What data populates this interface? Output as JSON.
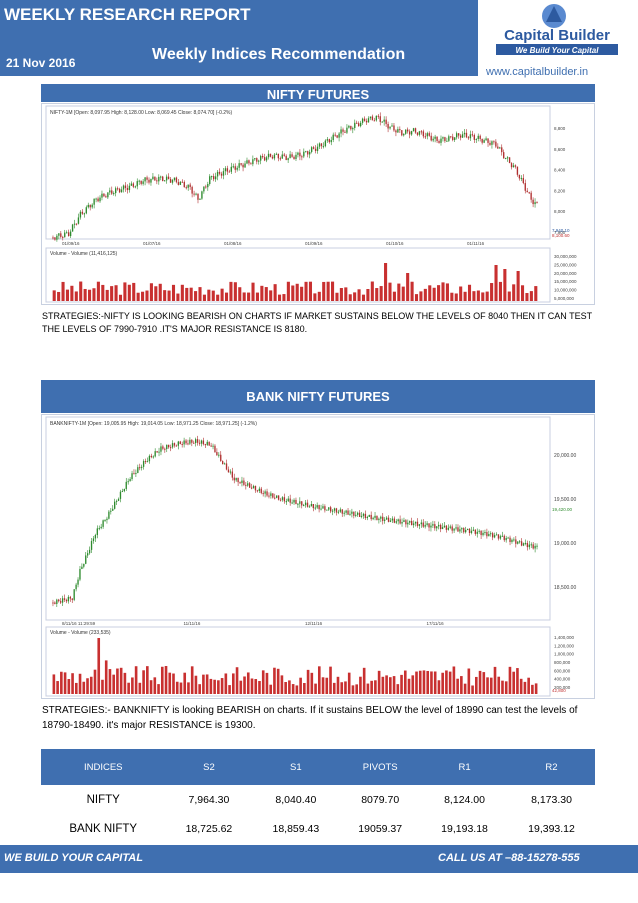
{
  "header": {
    "title": "WEEKLY RESEARCH REPORT",
    "date": "21 Nov 2016",
    "subtitle": "Weekly Indices Recommendation",
    "website": "www.capitalbuilder.in",
    "logo_name": "Capital Builder",
    "logo_tagline": "We Build Your Capital"
  },
  "nifty": {
    "section_title": "NIFTY FUTURES",
    "chart_header": "NIFTY-1M [Open: 8,097.95  High: 8,128.00  Low: 8,069.45  Close: 8,074.70] (-0.2%)",
    "volume_header": "Volume - Volume (11,416,125)",
    "price_axis": [
      "8,800",
      "8,600",
      "8,400",
      "8,200",
      "8,000",
      "7,900"
    ],
    "volume_axis": [
      "30,000,000",
      "25,000,000",
      "20,000,000",
      "15,000,000",
      "10,000,000",
      "5,000,000"
    ],
    "date_labels": [
      "01/09/16",
      "01/07/16",
      "01/08/16",
      "01/09/16",
      "01/10/16",
      "01/11/16"
    ],
    "price_tags": [
      "7,940.10",
      "8,100.60"
    ],
    "strategy": "STRATEGIES:-NIFTY IS LOOKING BEARISH ON CHARTS IF  MARKET SUSTAINS BELOW THE LEVELS OF 8040 THEN IT CAN TEST THE LEVELS OF 7990-7910 .IT'S MAJOR RESISTANCE  IS 8180."
  },
  "banknifty": {
    "section_title": "BANK NIFTY FUTURES",
    "chart_header": "BANKNIFTY-1M [Open: 19,005.95  High: 19,014.05  Low: 18,971.25  Close: 18,971.25] (-1.2%)",
    "volume_header": "Volume - Volume (233,535)",
    "price_axis": [
      "20,000.00",
      "19,500.00",
      "19,000.00",
      "18,500.00"
    ],
    "volume_axis": [
      "1,400,000",
      "1,200,000",
      "1,000,000",
      "800,000",
      "600,000",
      "400,000",
      "200,000"
    ],
    "date_labels": [
      "8/11/16 11:29:59",
      "11/11/16",
      "12/11/16",
      "17/11/16"
    ],
    "price_tags": [
      "19,420.00",
      "42,800"
    ],
    "strategy": "STRATEGIES:- BANKNIFTY is looking BEARISH on charts. If it sustains BELOW the level  of  18990 can test the levels of  18790-18490. it's major RESISTANCE is 19300."
  },
  "table": {
    "headers": [
      "INDICES",
      "S2",
      "S1",
      "PIVOTS",
      "R1",
      "R2"
    ],
    "rows": [
      [
        "NIFTY",
        "7,964.30",
        "8,040.40",
        "8079.70",
        "8,124.00",
        "8,173.30"
      ],
      [
        "BANK NIFTY",
        "18,725.62",
        "18,859.43",
        "19059.37",
        "19,193.18",
        "19,393.12"
      ]
    ]
  },
  "footer": {
    "left": "WE BUILD YOUR CAPITAL",
    "right": "CALL US AT –88-15278-555"
  },
  "colors": {
    "brand": "#3f6fb0",
    "up": "#2e8b2e",
    "down": "#b03030",
    "volume": "#c83030"
  }
}
